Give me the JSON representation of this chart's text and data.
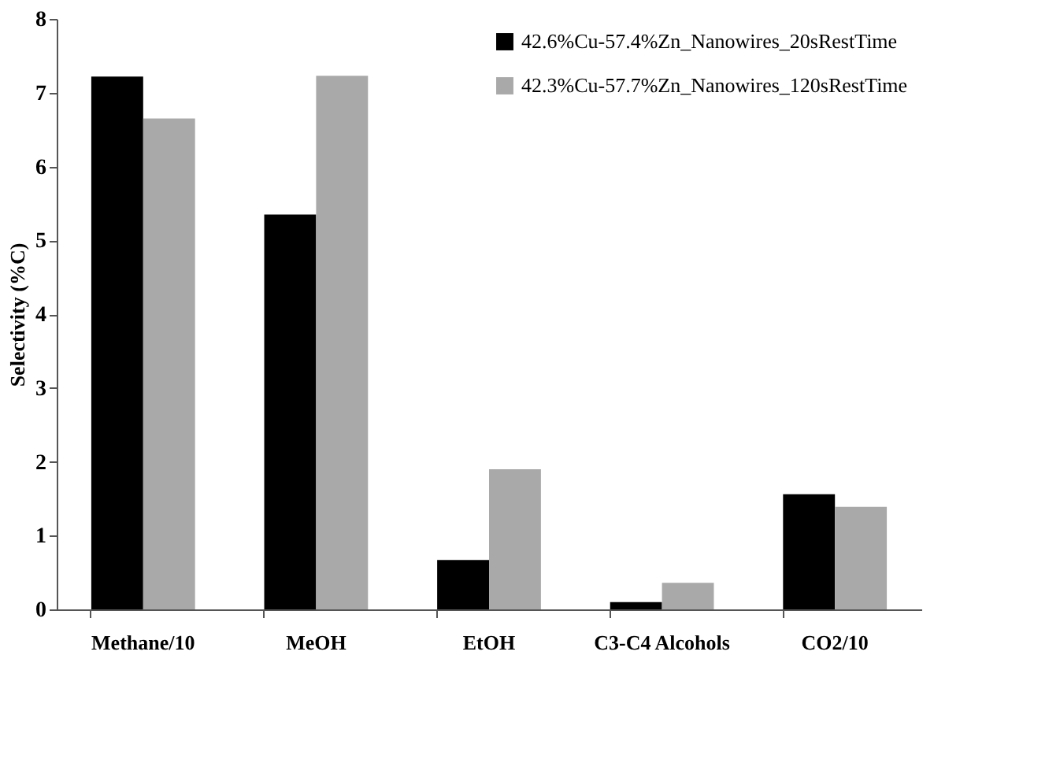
{
  "chart_data": {
    "type": "bar",
    "ylabel": "Selectivity (%C)",
    "categories": [
      "Methane/10",
      "MeOH",
      "EtOH",
      "C3-C4 Alcohols",
      "CO2/10"
    ],
    "series": [
      {
        "name": "42.6%Cu-57.4%Zn_Nanowires_20sRestTime",
        "color": "#000000",
        "values": [
          7.22,
          5.35,
          0.67,
          0.1,
          1.56
        ]
      },
      {
        "name": "42.3%Cu-57.7%Zn_Nanowires_120sRestTime",
        "color": "#a9a9a9",
        "values": [
          6.65,
          7.23,
          1.9,
          0.36,
          1.39
        ]
      }
    ],
    "ylim": [
      0,
      8
    ],
    "yticks": [
      0,
      1,
      2,
      3,
      4,
      5,
      6,
      7,
      8
    ],
    "grid": false,
    "legend": "top right"
  }
}
